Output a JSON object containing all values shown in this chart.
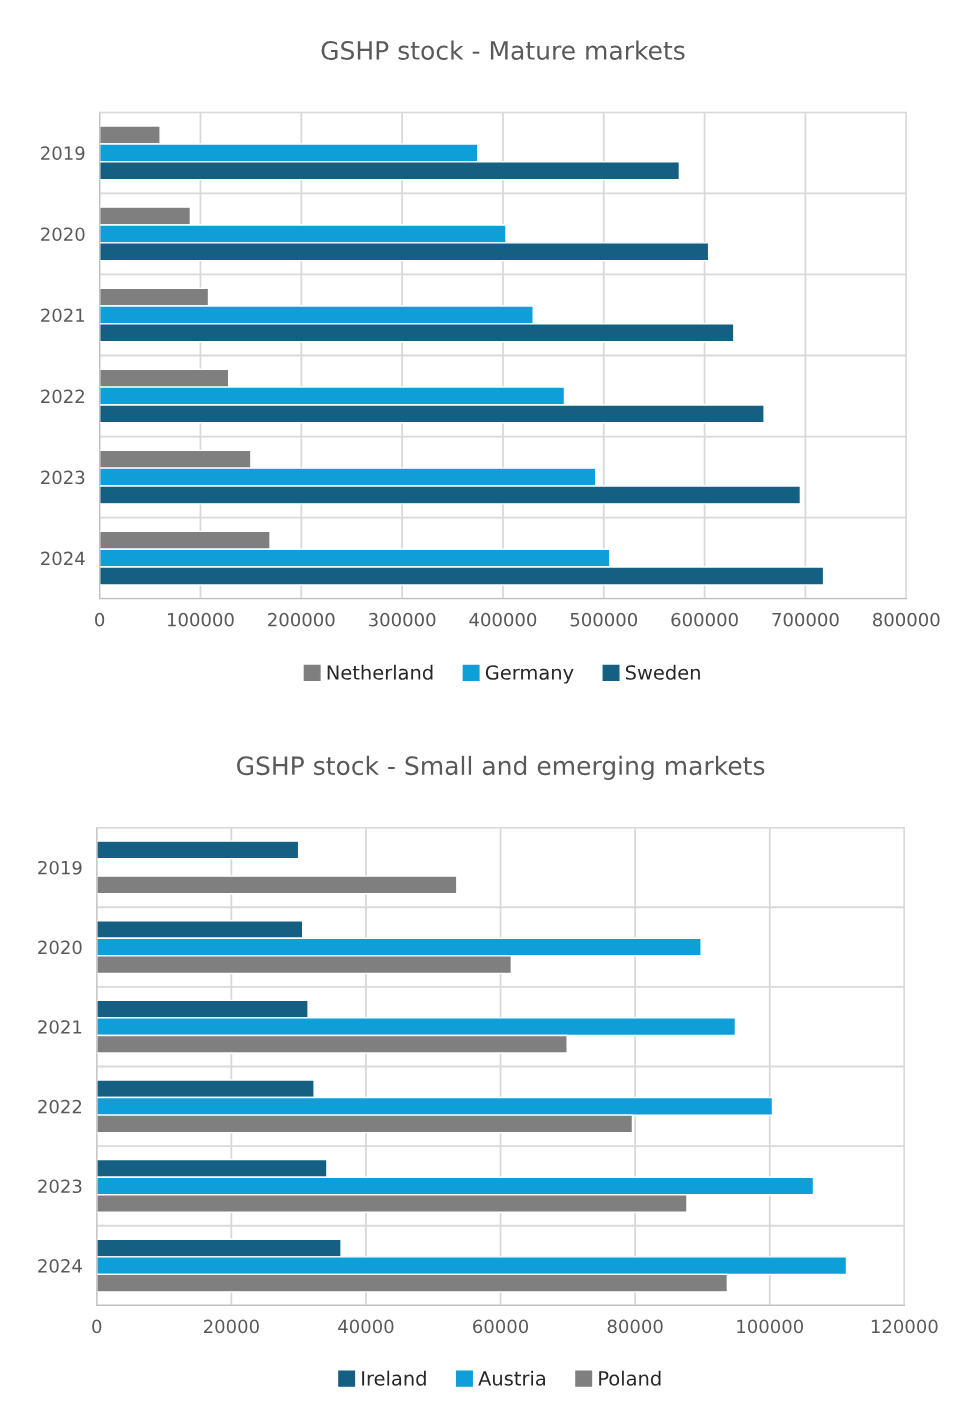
{
  "chart_data": [
    {
      "type": "bar",
      "orientation": "horizontal",
      "title": "GSHP stock - Mature markets",
      "categories": [
        "2019",
        "2020",
        "2021",
        "2022",
        "2023",
        "2024"
      ],
      "series": [
        {
          "name": "Netherland",
          "color": "#7f7f7f",
          "values": [
            60000,
            90000,
            108000,
            128000,
            150000,
            169000
          ]
        },
        {
          "name": "Germany",
          "color": "#0e9fd8",
          "values": [
            375000,
            403000,
            430000,
            461000,
            492000,
            506000
          ]
        },
        {
          "name": "Sweden",
          "color": "#156082",
          "values": [
            575000,
            604000,
            629000,
            659000,
            695000,
            718000
          ]
        }
      ],
      "xlim": [
        0,
        800000
      ],
      "xticks": [
        0,
        100000,
        200000,
        300000,
        400000,
        500000,
        600000,
        700000,
        800000
      ],
      "grid": true,
      "legend": "bottom"
    },
    {
      "type": "bar",
      "orientation": "horizontal",
      "title": "GSHP stock - Small and emerging markets",
      "categories": [
        "2019",
        "2020",
        "2021",
        "2022",
        "2023",
        "2024"
      ],
      "series": [
        {
          "name": "Ireland",
          "color": "#156082",
          "values": [
            30000,
            30600,
            31400,
            32300,
            34200,
            36300
          ]
        },
        {
          "name": "Austria",
          "color": "#0e9fd8",
          "values": [
            null,
            89800,
            94900,
            100400,
            106500,
            111400
          ]
        },
        {
          "name": "Poland",
          "color": "#7f7f7f",
          "values": [
            53500,
            61600,
            69900,
            79600,
            87700,
            93700
          ]
        }
      ],
      "xlim": [
        0,
        120000
      ],
      "xticks": [
        0,
        20000,
        40000,
        60000,
        80000,
        100000,
        120000
      ],
      "grid": true,
      "legend": "bottom"
    }
  ]
}
